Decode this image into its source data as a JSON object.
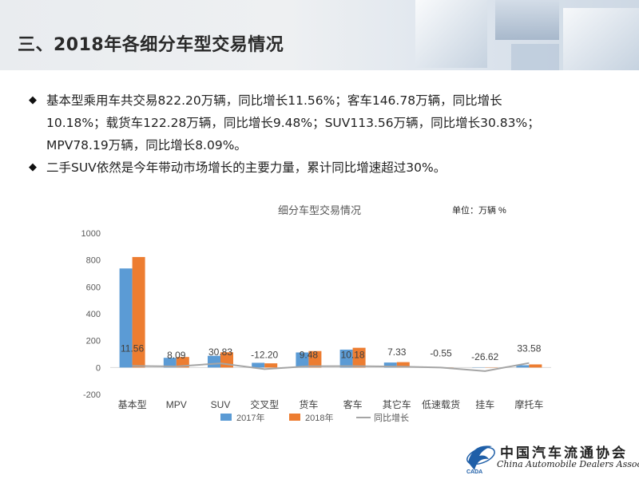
{
  "header": {
    "title": "三、2018年各细分车型交易情况"
  },
  "bullets": [
    {
      "lines": [
        "基本型乘用车共交易822.20万辆，同比增长11.56%；客车146.78万辆，同比增长",
        "10.18%；载货车122.28万辆，同比增长9.48%；SUV113.56万辆，同比增长30.83%；",
        "MPV78.19万辆，同比增长8.09%。"
      ]
    },
    {
      "lines": [
        "二手SUV依然是今年带动市场增长的主要力量，累计同比增速超过30%。"
      ]
    }
  ],
  "chart_data": {
    "type": "bar",
    "title": "细分车型交易情况",
    "unit_label": "单位：万辆  %",
    "categories": [
      "基本型",
      "MPV",
      "SUV",
      "交叉型",
      "货车",
      "客车",
      "其它车",
      "低速载货",
      "挂车",
      "摩托车"
    ],
    "series": [
      {
        "name": "2017年",
        "type": "bar",
        "values": [
          737,
          72,
          87,
          35,
          112,
          133,
          37,
          1,
          2,
          17
        ]
      },
      {
        "name": "2018年",
        "type": "bar",
        "values": [
          822.2,
          78.19,
          113.56,
          31,
          122.28,
          146.78,
          40,
          1,
          2,
          23
        ]
      },
      {
        "name": "同比增长",
        "type": "line",
        "values": [
          11.56,
          8.09,
          30.83,
          -12.2,
          9.48,
          10.18,
          7.33,
          -0.55,
          -26.62,
          33.58
        ]
      }
    ],
    "data_labels": [
      "11.56",
      "8.09",
      "30.83",
      "-12.20",
      "9.48",
      "10.18",
      "7.33",
      "-0.55",
      "-26.62",
      "33.58"
    ],
    "ylim": [
      -200,
      1000
    ],
    "yticks": [
      "-200",
      "0",
      "200",
      "400",
      "600",
      "800",
      "1000"
    ],
    "grid": false,
    "legend": "bottom",
    "colors": {
      "2017年": "#5b9bd5",
      "2018年": "#ed7d31",
      "同比增长": "#a5a5a5"
    }
  },
  "logo": {
    "cn": "中国汽车流通协会",
    "en": "China Automobile Dealers Association",
    "mark": "CADA"
  }
}
